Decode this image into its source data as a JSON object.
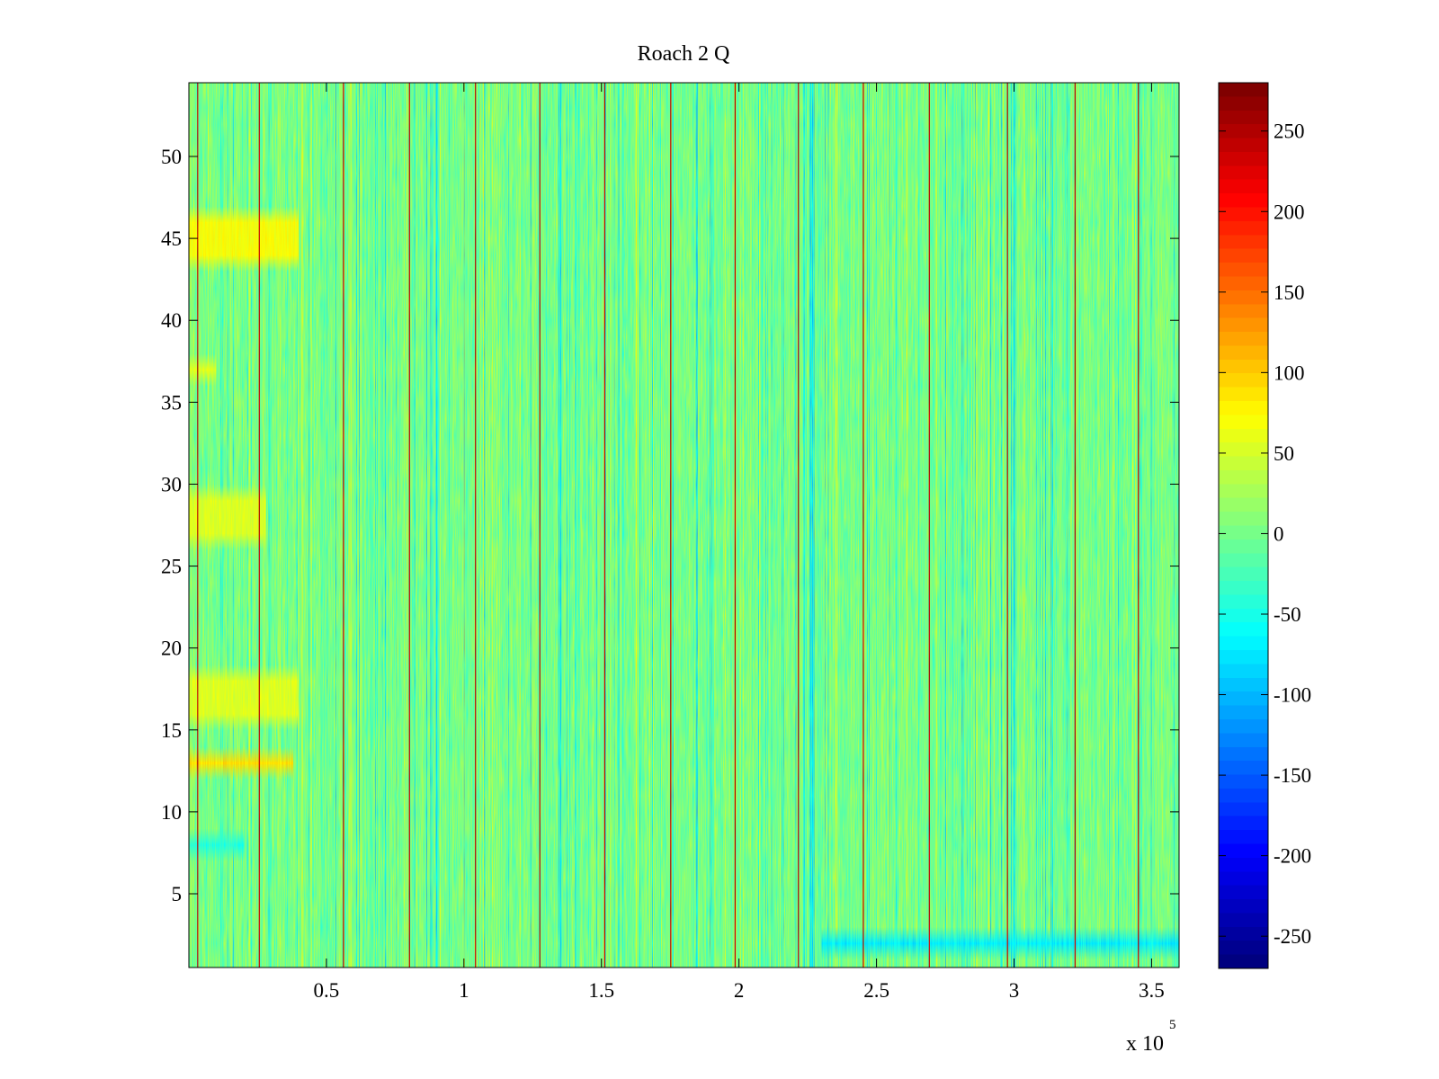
{
  "chart_data": {
    "type": "heatmap",
    "title": "Roach 2 Q",
    "xlabel": "",
    "ylabel": "",
    "x_range": [
      0,
      360000
    ],
    "y_range": [
      0.5,
      54.5
    ],
    "x_exponent_label": "x 10",
    "x_exponent_power": "5",
    "x_ticks": [
      {
        "value": 50000,
        "label": "0.5"
      },
      {
        "value": 100000,
        "label": "1"
      },
      {
        "value": 150000,
        "label": "1.5"
      },
      {
        "value": 200000,
        "label": "2"
      },
      {
        "value": 250000,
        "label": "2.5"
      },
      {
        "value": 300000,
        "label": "3"
      },
      {
        "value": 350000,
        "label": "3.5"
      }
    ],
    "y_ticks": [
      {
        "value": 5,
        "label": "5"
      },
      {
        "value": 10,
        "label": "10"
      },
      {
        "value": 15,
        "label": "15"
      },
      {
        "value": 20,
        "label": "20"
      },
      {
        "value": 25,
        "label": "25"
      },
      {
        "value": 30,
        "label": "30"
      },
      {
        "value": 35,
        "label": "35"
      },
      {
        "value": 40,
        "label": "40"
      },
      {
        "value": 45,
        "label": "45"
      },
      {
        "value": 50,
        "label": "50"
      }
    ],
    "colorbar": {
      "colormap": "jet",
      "range": [
        -270,
        280
      ],
      "ticks": [
        {
          "value": 250,
          "label": "250"
        },
        {
          "value": 200,
          "label": "200"
        },
        {
          "value": 150,
          "label": "150"
        },
        {
          "value": 100,
          "label": "100"
        },
        {
          "value": 50,
          "label": "50"
        },
        {
          "value": 0,
          "label": "0"
        },
        {
          "value": -50,
          "label": "-50"
        },
        {
          "value": -100,
          "label": "-100"
        },
        {
          "value": -150,
          "label": "-150"
        },
        {
          "value": -200,
          "label": "-200"
        },
        {
          "value": -250,
          "label": "-250"
        }
      ]
    },
    "rows": 54,
    "columns": 1800,
    "baseline_value": 0,
    "spike_columns_x": [
      3000,
      25500,
      56000,
      80000,
      104000,
      127500,
      151000,
      175000,
      198500,
      221500,
      245000,
      269000,
      297500,
      322000,
      345000
    ],
    "spike_value": 265,
    "warm_bands": [
      {
        "rows": [
          44,
          46
        ],
        "x_range": [
          0,
          40000
        ],
        "value": 70
      },
      {
        "rows": [
          37,
          37
        ],
        "x_range": [
          0,
          10000
        ],
        "value": 60
      },
      {
        "rows": [
          27,
          29
        ],
        "x_range": [
          0,
          28000
        ],
        "value": 55
      },
      {
        "rows": [
          16,
          18
        ],
        "x_range": [
          0,
          40000
        ],
        "value": 55
      },
      {
        "rows": [
          13,
          13
        ],
        "x_range": [
          0,
          38000
        ],
        "value": 90
      }
    ],
    "cool_bands": [
      {
        "rows": [
          2,
          2
        ],
        "x_range": [
          230000,
          360000
        ],
        "value": -70
      },
      {
        "rows": [
          8,
          8
        ],
        "x_range": [
          0,
          20000
        ],
        "value": -45
      }
    ],
    "grid": false,
    "legend": "colorbar-right"
  }
}
